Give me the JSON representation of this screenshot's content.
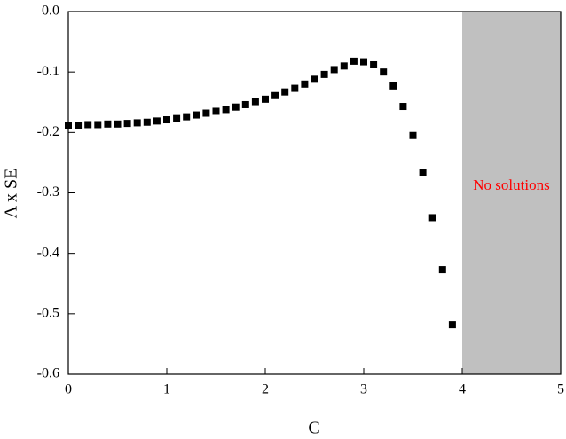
{
  "chart_data": {
    "type": "scatter",
    "xlabel": "C",
    "ylabel": "A x SE",
    "x": [
      0,
      0.1,
      0.2,
      0.3,
      0.4,
      0.5,
      0.6,
      0.7,
      0.8,
      0.9,
      1.0,
      1.1,
      1.2,
      1.3,
      1.4,
      1.5,
      1.6,
      1.7,
      1.8,
      1.9,
      2.0,
      2.1,
      2.2,
      2.3,
      2.4,
      2.5,
      2.6,
      2.7,
      2.8,
      2.9,
      3.0,
      3.1,
      3.2,
      3.3,
      3.4,
      3.5,
      3.6,
      3.7,
      3.8,
      3.9
    ],
    "values": [
      -0.188,
      -0.188,
      -0.187,
      -0.187,
      -0.186,
      -0.186,
      -0.185,
      -0.184,
      -0.183,
      -0.181,
      -0.179,
      -0.177,
      -0.174,
      -0.171,
      -0.168,
      -0.165,
      -0.162,
      -0.158,
      -0.154,
      -0.149,
      -0.145,
      -0.139,
      -0.133,
      -0.127,
      -0.12,
      -0.112,
      -0.104,
      -0.096,
      -0.09,
      -0.082,
      -0.083,
      -0.088,
      -0.1,
      -0.123,
      -0.157,
      -0.205,
      -0.267,
      -0.341,
      -0.427,
      -0.518
    ],
    "color": "#000000",
    "xlim": [
      0,
      5
    ],
    "ylim": [
      -0.6,
      0
    ],
    "xticks": [
      0,
      1,
      2,
      3,
      4,
      5
    ],
    "yticks": [
      {
        "value": 0,
        "label": "0.0"
      },
      -0.1,
      -0.2,
      -0.3,
      -0.4,
      -0.5,
      -0.6
    ],
    "shaded_region": {
      "xlim": [
        4,
        5
      ],
      "color": "#c0c0c0",
      "label": "No solutions",
      "label_color": "#ff0000"
    }
  }
}
